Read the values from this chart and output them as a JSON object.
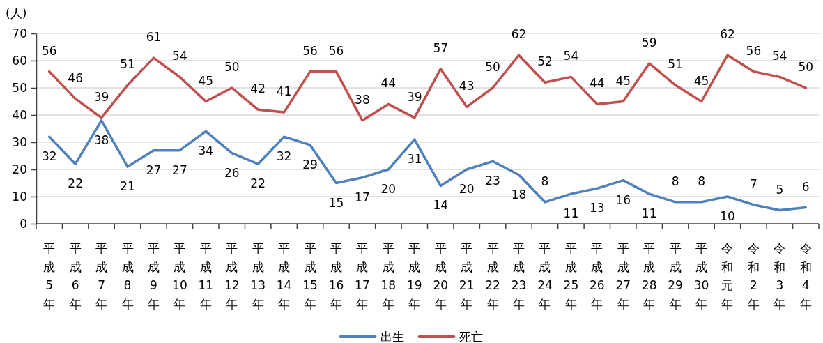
{
  "chart_data": {
    "type": "line",
    "ylabel": "(人)",
    "categories": [
      "平成5年",
      "平成6年",
      "平成7年",
      "平成8年",
      "平成9年",
      "平成10年",
      "平成11年",
      "平成12年",
      "平成13年",
      "平成14年",
      "平成15年",
      "平成16年",
      "平成17年",
      "平成18年",
      "平成19年",
      "平成20年",
      "平成21年",
      "平成22年",
      "平成23年",
      "平成24年",
      "平成25年",
      "平成26年",
      "平成27年",
      "平成28年",
      "平成29年",
      "平成30年",
      "令和元年",
      "令和2年",
      "令和3年",
      "令和4年"
    ],
    "series": [
      {
        "name": "出生",
        "color": "#4f81bd",
        "values": [
          32,
          22,
          38,
          21,
          27,
          27,
          34,
          26,
          22,
          32,
          29,
          15,
          17,
          20,
          31,
          14,
          20,
          23,
          18,
          8,
          11,
          13,
          16,
          11,
          8,
          8,
          10,
          7,
          5,
          6
        ]
      },
      {
        "name": "死亡",
        "color": "#c0504d",
        "values": [
          56,
          46,
          39,
          51,
          61,
          54,
          45,
          50,
          42,
          41,
          56,
          56,
          38,
          44,
          39,
          57,
          43,
          50,
          62,
          52,
          54,
          44,
          45,
          59,
          51,
          45,
          62,
          56,
          54,
          50
        ]
      }
    ],
    "ylim": [
      0,
      70
    ],
    "yticks": [
      0,
      10,
      20,
      30,
      40,
      50,
      60,
      70
    ],
    "grid": "y",
    "legend": "bottom",
    "data_labels": true
  }
}
